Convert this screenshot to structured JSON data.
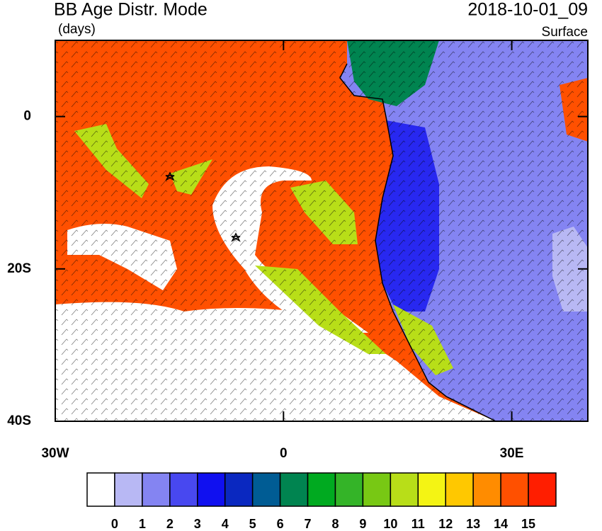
{
  "chart_data": {
    "type": "map",
    "title": "BB Age Distr. Mode",
    "units": "(days)",
    "time": "2018-10-01_09",
    "level": "Surface",
    "xlim": [
      -30,
      40
    ],
    "ylim": [
      -40,
      10
    ],
    "xticks": [
      {
        "value": -30,
        "label": "30W"
      },
      0,
      {
        "value": 30,
        "label": "30E"
      }
    ],
    "yticks": [
      0,
      {
        "value": -20,
        "label": "20S"
      },
      {
        "value": -40,
        "label": "40S"
      }
    ],
    "colorbar": {
      "levels": [
        0,
        1,
        2,
        3,
        4,
        5,
        6,
        7,
        8,
        9,
        10,
        11,
        12,
        13,
        14,
        15
      ],
      "colors": [
        "#ffffff",
        "#b8b8f4",
        "#8484f2",
        "#4848f0",
        "#1010f0",
        "#0a28c0",
        "#005c94",
        "#008450",
        "#00aa20",
        "#34b428",
        "#78c814",
        "#b8de18",
        "#f4f414",
        "#ffc800",
        "#ff8c00",
        "#ff5000",
        "#ff1e00"
      ]
    }
  }
}
